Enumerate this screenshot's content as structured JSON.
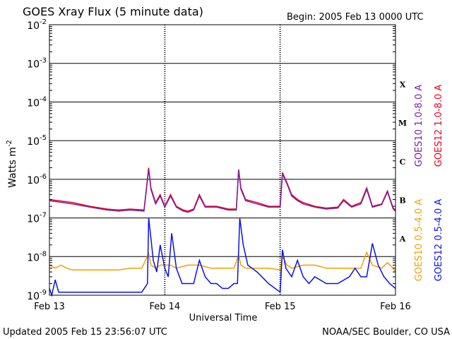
{
  "chart_data": {
    "type": "line",
    "title": "GOES Xray Flux (5 minute data)",
    "begin_label": "Begin:  2005 Feb 13 0000 UTC",
    "xlabel": "Universal Time",
    "ylabel": "Watts m",
    "ylabel_sup": "-2",
    "y_log_scale": true,
    "ylim": [
      1e-09,
      0.01
    ],
    "xlim_days": [
      0,
      3
    ],
    "x_ticks": [
      "Feb 13",
      "Feb 14",
      "Feb 15",
      "Feb 16"
    ],
    "y_ticks": [
      {
        "base": "10",
        "exp": "-2",
        "value": 0.01
      },
      {
        "base": "10",
        "exp": "-3",
        "value": 0.001
      },
      {
        "base": "10",
        "exp": "-4",
        "value": 0.0001
      },
      {
        "base": "10",
        "exp": "-5",
        "value": 1e-05
      },
      {
        "base": "10",
        "exp": "-6",
        "value": 1e-06
      },
      {
        "base": "10",
        "exp": "-7",
        "value": 1e-07
      },
      {
        "base": "10",
        "exp": "-8",
        "value": 1e-08
      },
      {
        "base": "10",
        "exp": "-9",
        "value": 1e-09
      }
    ],
    "flare_classes": [
      {
        "label": "X",
        "value": 0.0003
      },
      {
        "label": "M",
        "value": 3e-05
      },
      {
        "label": "C",
        "value": 3e-06
      },
      {
        "label": "B",
        "value": 3e-07
      },
      {
        "label": "A",
        "value": 3e-08
      }
    ],
    "grid": true,
    "legend_right": [
      {
        "text": "GOES10 1.0-8.0 A",
        "color": "#7b1fa2"
      },
      {
        "text": "GOES12 1.0-8.0 A",
        "color": "#e8001c"
      }
    ],
    "legend_right2": [
      {
        "text": "GOES10 0.5-4.0 A",
        "color": "#f2a000"
      },
      {
        "text": "GOES12 0.5-4.0 A",
        "color": "#0a10e8"
      }
    ],
    "series": [
      {
        "name": "GOES12 1.0-8.0 A",
        "color": "#e8001c",
        "x": [
          0,
          0.2,
          0.35,
          0.5,
          0.6,
          0.7,
          0.82,
          0.86,
          0.88,
          0.92,
          0.96,
          1.0,
          1.05,
          1.1,
          1.16,
          1.2,
          1.25,
          1.3,
          1.35,
          1.45,
          1.55,
          1.62,
          1.64,
          1.66,
          1.7,
          1.8,
          1.9,
          2.0,
          2.02,
          2.06,
          2.1,
          2.15,
          2.2,
          2.3,
          2.4,
          2.5,
          2.55,
          2.62,
          2.7,
          2.75,
          2.8,
          2.88,
          2.93,
          2.98,
          3.0
        ],
        "y": [
          3e-07,
          2.5e-07,
          2e-07,
          1.7e-07,
          1.6e-07,
          1.7e-07,
          1.6e-07,
          2e-06,
          6e-07,
          2.5e-07,
          4e-07,
          2e-07,
          4e-07,
          2e-07,
          1.6e-07,
          1.5e-07,
          1.7e-07,
          4e-07,
          2e-07,
          2e-07,
          1.7e-07,
          1.7e-07,
          1.8e-06,
          6e-07,
          3e-07,
          2.5e-07,
          2e-07,
          2e-07,
          1.5e-06,
          8e-07,
          4e-07,
          3e-07,
          2.5e-07,
          2e-07,
          1.8e-07,
          1.9e-07,
          3e-07,
          2e-07,
          2.5e-07,
          6e-07,
          2e-07,
          2.3e-07,
          5e-07,
          1.8e-07,
          1.6e-07
        ]
      },
      {
        "name": "GOES10 1.0-8.0 A",
        "color": "#7b1fa2",
        "x": [
          0,
          0.2,
          0.35,
          0.5,
          0.6,
          0.7,
          0.82,
          0.86,
          0.88,
          0.92,
          0.96,
          1.0,
          1.05,
          1.1,
          1.16,
          1.2,
          1.25,
          1.3,
          1.35,
          1.45,
          1.55,
          1.62,
          1.64,
          1.66,
          1.7,
          1.8,
          1.9,
          2.0,
          2.02,
          2.06,
          2.1,
          2.15,
          2.2,
          2.3,
          2.4,
          2.5,
          2.55,
          2.62,
          2.7,
          2.75,
          2.8,
          2.88,
          2.93,
          2.98,
          3.0
        ],
        "y": [
          2.8e-07,
          2.3e-07,
          1.9e-07,
          1.6e-07,
          1.5e-07,
          1.6e-07,
          1.5e-07,
          1.8e-06,
          5.5e-07,
          2.3e-07,
          3.7e-07,
          1.9e-07,
          3.7e-07,
          1.9e-07,
          1.5e-07,
          1.4e-07,
          1.6e-07,
          3.7e-07,
          1.9e-07,
          1.9e-07,
          1.6e-07,
          1.6e-07,
          1.7e-06,
          5.5e-07,
          2.8e-07,
          2.3e-07,
          1.9e-07,
          1.9e-07,
          1.4e-06,
          7.5e-07,
          3.7e-07,
          2.8e-07,
          2.3e-07,
          1.9e-07,
          1.7e-07,
          1.8e-07,
          2.8e-07,
          1.9e-07,
          2.3e-07,
          5.5e-07,
          1.9e-07,
          2.2e-07,
          4.7e-07,
          1.7e-07,
          1.5e-07
        ]
      },
      {
        "name": "GOES10 0.5-4.0 A",
        "color": "#f2a000",
        "x": [
          0,
          0.05,
          0.1,
          0.15,
          0.2,
          0.3,
          0.4,
          0.5,
          0.6,
          0.7,
          0.8,
          0.86,
          0.88,
          0.92,
          0.96,
          1.0,
          1.05,
          1.1,
          1.2,
          1.3,
          1.4,
          1.5,
          1.6,
          1.64,
          1.66,
          1.7,
          1.8,
          1.9,
          2.0,
          2.02,
          2.06,
          2.1,
          2.2,
          2.3,
          2.4,
          2.5,
          2.6,
          2.7,
          2.75,
          2.8,
          2.88,
          2.93,
          2.98,
          3.0
        ],
        "y": [
          6e-09,
          5e-09,
          6e-09,
          5e-09,
          4.5e-09,
          4.5e-09,
          4.5e-09,
          4.5e-09,
          4.5e-09,
          5e-09,
          5e-09,
          1.2e-08,
          6e-09,
          5e-09,
          6e-09,
          6e-09,
          6e-09,
          5e-09,
          6e-09,
          6e-09,
          5e-09,
          5e-09,
          5e-09,
          1.1e-08,
          6e-09,
          5e-09,
          5e-09,
          5e-09,
          4.5e-09,
          1e-08,
          6e-09,
          5e-09,
          6e-09,
          6e-09,
          5e-09,
          5e-09,
          5e-09,
          5e-09,
          1.3e-08,
          6e-09,
          5e-09,
          7e-09,
          5e-09,
          4e-09
        ]
      },
      {
        "name": "GOES12 0.5-4.0 A",
        "color": "#0a10e8",
        "x": [
          0,
          0.02,
          0.05,
          0.08,
          0.12,
          0.18,
          0.25,
          0.35,
          0.45,
          0.55,
          0.6,
          0.7,
          0.8,
          0.85,
          0.86,
          0.88,
          0.9,
          0.93,
          0.96,
          1.0,
          1.03,
          1.06,
          1.1,
          1.15,
          1.2,
          1.25,
          1.3,
          1.35,
          1.4,
          1.45,
          1.5,
          1.55,
          1.6,
          1.63,
          1.65,
          1.68,
          1.72,
          1.8,
          1.9,
          2.0,
          2.02,
          2.05,
          2.1,
          2.15,
          2.2,
          2.25,
          2.3,
          2.4,
          2.5,
          2.6,
          2.65,
          2.7,
          2.75,
          2.8,
          2.85,
          2.9,
          2.95,
          3.0
        ],
        "y": [
          1.5e-09,
          1e-09,
          2.5e-09,
          1.2e-09,
          1.2e-09,
          1.2e-09,
          1.2e-09,
          1.2e-09,
          1.2e-09,
          1.2e-09,
          1.2e-09,
          1.2e-09,
          1.2e-09,
          2e-09,
          1e-07,
          3e-08,
          8e-09,
          4e-09,
          2e-08,
          5e-09,
          3e-09,
          4e-08,
          5e-09,
          2e-09,
          2e-09,
          2e-09,
          8e-09,
          3e-09,
          2e-09,
          2e-09,
          1.5e-09,
          1.5e-09,
          2e-09,
          2e-09,
          1e-07,
          2e-08,
          6e-09,
          4e-09,
          2e-09,
          1.2e-09,
          1.5e-08,
          5e-09,
          3e-09,
          8e-09,
          3e-09,
          2e-09,
          3e-09,
          2e-09,
          2e-09,
          3e-09,
          5e-09,
          3e-09,
          3e-09,
          2.2e-08,
          6e-09,
          3e-09,
          2e-09,
          1.5e-09
        ]
      }
    ]
  },
  "footer": {
    "updated": "Updated 2005 Feb 15 23:56:07 UTC",
    "source": "NOAA/SEC Boulder, CO USA"
  }
}
